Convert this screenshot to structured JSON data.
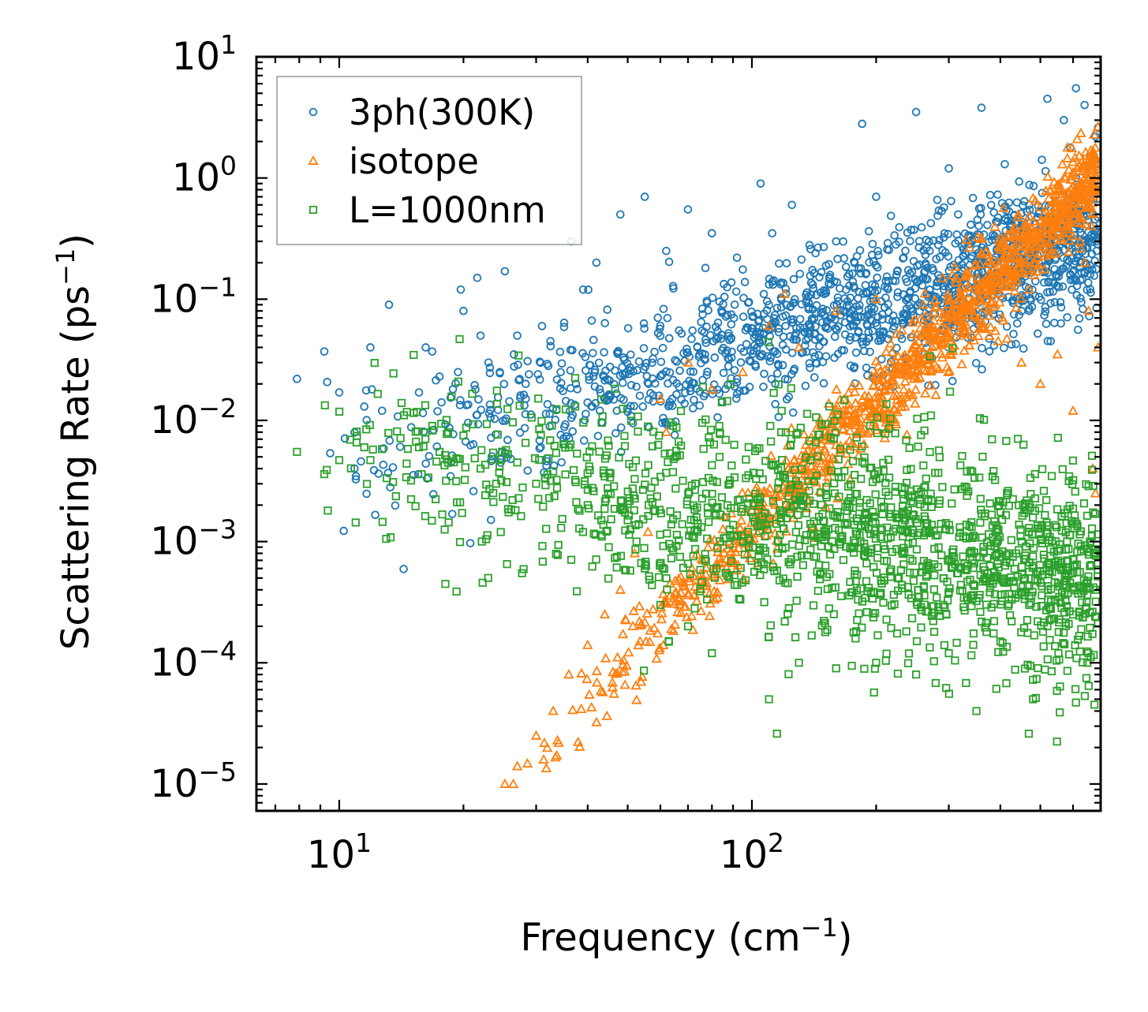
{
  "chart_data": {
    "type": "scatter",
    "xscale": "log",
    "yscale": "log",
    "xlim": [
      6.3,
      700
    ],
    "ylim": [
      6e-06,
      10
    ],
    "xlabel": "Frequency (cm",
    "xlabel_sup": "−1",
    "xlabel_end": ")",
    "ylabel": "Scattering Rate (ps",
    "ylabel_sup": "−1",
    "ylabel_end": ")",
    "x_ticks": [
      {
        "value": 10,
        "base": "10",
        "exp": "1"
      },
      {
        "value": 100,
        "base": "10",
        "exp": "2"
      }
    ],
    "y_ticks": [
      {
        "value": 10,
        "base": "10",
        "exp": "1"
      },
      {
        "value": 1,
        "base": "10",
        "exp": "0"
      },
      {
        "value": 0.1,
        "base": "10",
        "exp": "−1"
      },
      {
        "value": 0.01,
        "base": "10",
        "exp": "−2"
      },
      {
        "value": 0.001,
        "base": "10",
        "exp": "−3"
      },
      {
        "value": 0.0001,
        "base": "10",
        "exp": "−4"
      },
      {
        "value": 1e-05,
        "base": "10",
        "exp": "−5"
      }
    ],
    "legend_position": "top-left",
    "series": [
      {
        "name": "3ph(300K)",
        "marker": "circle",
        "color": "#1f77b4",
        "trend": {
          "x_range": [
            7.9,
            690
          ],
          "y_at_xmin": 0.003,
          "slope": 1.05,
          "spread": 0.28,
          "count": 1600
        },
        "points": [
          [
            7.9,
            0.022
          ],
          [
            9.2,
            0.037
          ],
          [
            10,
            0.017
          ],
          [
            11.5,
            0.013
          ],
          [
            11.9,
            0.04
          ],
          [
            12,
            0.018
          ],
          [
            12.7,
            0.012
          ],
          [
            13.2,
            0.09
          ],
          [
            15.6,
            0.017
          ],
          [
            16.2,
            0.04
          ],
          [
            16.8,
            0.037
          ],
          [
            17.5,
            0.023
          ],
          [
            19.4,
            0.025
          ],
          [
            19.7,
            0.12
          ],
          [
            20,
            0.08
          ],
          [
            21.6,
            0.15
          ],
          [
            22,
            0.05
          ],
          [
            23,
            0.03
          ],
          [
            24.5,
            0.025
          ],
          [
            25.2,
            0.17
          ],
          [
            26.5,
            0.035
          ],
          [
            27,
            0.05
          ],
          [
            28.3,
            0.02
          ],
          [
            30.3,
            0.024
          ],
          [
            31,
            0.06
          ],
          [
            32.5,
            0.045
          ],
          [
            34.4,
            0.025
          ],
          [
            36.5,
            0.3
          ],
          [
            39,
            0.12
          ],
          [
            42,
            0.2
          ],
          [
            48,
            0.5
          ],
          [
            55,
            0.7
          ],
          [
            62,
            0.25
          ],
          [
            70,
            0.55
          ],
          [
            80,
            0.35
          ],
          [
            92,
            0.22
          ],
          [
            105,
            0.9
          ],
          [
            112,
            0.35
          ],
          [
            125,
            0.6
          ],
          [
            160,
            0.3
          ],
          [
            185,
            2.8
          ],
          [
            200,
            0.7
          ],
          [
            250,
            3.5
          ],
          [
            300,
            1.2
          ],
          [
            360,
            3.8
          ],
          [
            410,
            1.3
          ],
          [
            470,
            0.6
          ],
          [
            520,
            4.5
          ],
          [
            570,
            3.0
          ],
          [
            610,
            5.5
          ],
          [
            640,
            4.0
          ],
          [
            660,
            1.5
          ],
          [
            680,
            2.2
          ],
          [
            690,
            2.6
          ]
        ]
      },
      {
        "name": "isotope",
        "marker": "triangle",
        "color": "#ff7f0e",
        "trend": {
          "x_range": [
            25,
            690
          ],
          "y_at_xmin": 1e-05,
          "slope": 3.5,
          "spread": 0.18,
          "count": 1200
        },
        "points": [
          [
            25.2,
            1e-05
          ],
          [
            27,
            1.4e-05
          ],
          [
            30,
            2.5e-05
          ],
          [
            33,
            4e-05
          ],
          [
            36,
            8e-05
          ],
          [
            40,
            0.00014
          ],
          [
            44,
            0.00025
          ],
          [
            48,
            0.0004
          ],
          [
            52,
            0.0008
          ],
          [
            56,
            0.0012
          ],
          [
            60,
            0.015
          ],
          [
            62,
            0.008
          ],
          [
            70,
            0.03
          ],
          [
            80,
            0.018
          ],
          [
            95,
            0.025
          ],
          [
            110,
            0.06
          ],
          [
            120,
            0.11
          ],
          [
            130,
            0.04
          ],
          [
            160,
            0.08
          ],
          [
            200,
            0.1
          ],
          [
            260,
            0.09
          ],
          [
            320,
            0.05
          ],
          [
            380,
            0.12
          ],
          [
            450,
            0.03
          ],
          [
            500,
            0.02
          ],
          [
            550,
            0.035
          ],
          [
            600,
            0.012
          ],
          [
            640,
            0.2
          ],
          [
            655,
            0.08
          ],
          [
            670,
            0.004
          ],
          [
            680,
            0.0025
          ],
          [
            690,
            0.04
          ]
        ]
      },
      {
        "name": "L=1000nm",
        "marker": "square",
        "color": "#2ca02c",
        "trend": {
          "x_range": [
            7.9,
            690
          ],
          "y_at_xmin": 0.007,
          "slope": -0.6,
          "spread": 0.45,
          "count": 1600
        },
        "points": [
          [
            7.9,
            0.0055
          ],
          [
            9.2,
            0.0036
          ],
          [
            10,
            0.0047
          ],
          [
            11.5,
            0.006
          ],
          [
            11.9,
            0.0047
          ],
          [
            12.7,
            0.0058
          ],
          [
            13.5,
            0.0031
          ],
          [
            15.6,
            0.006
          ],
          [
            16.8,
            0.009
          ],
          [
            17.5,
            0.0055
          ],
          [
            19.4,
            0.0048
          ],
          [
            20,
            0.0075
          ],
          [
            22,
            0.004
          ],
          [
            24,
            0.003
          ],
          [
            27,
            0.0045
          ],
          [
            30,
            0.003
          ],
          [
            33,
            0.0038
          ],
          [
            36,
            0.006
          ],
          [
            40,
            0.002
          ],
          [
            45,
            0.0009
          ],
          [
            50,
            0.0015
          ],
          [
            55,
            0.0006
          ],
          [
            60,
            0.0003
          ],
          [
            70,
            0.0002
          ],
          [
            80,
            0.00012
          ],
          [
            110,
            5e-05
          ],
          [
            115,
            2.6e-05
          ],
          [
            130,
            0.0001
          ],
          [
            160,
            9e-05
          ],
          [
            200,
            0.0001
          ],
          [
            250,
            8e-05
          ],
          [
            300,
            0.00012
          ],
          [
            350,
            4e-05
          ],
          [
            400,
            0.00015
          ],
          [
            480,
            5e-05
          ],
          [
            520,
            0.0002
          ],
          [
            600,
            0.00025
          ],
          [
            650,
            0.0001
          ],
          [
            680,
            0.0004
          ]
        ]
      }
    ]
  }
}
